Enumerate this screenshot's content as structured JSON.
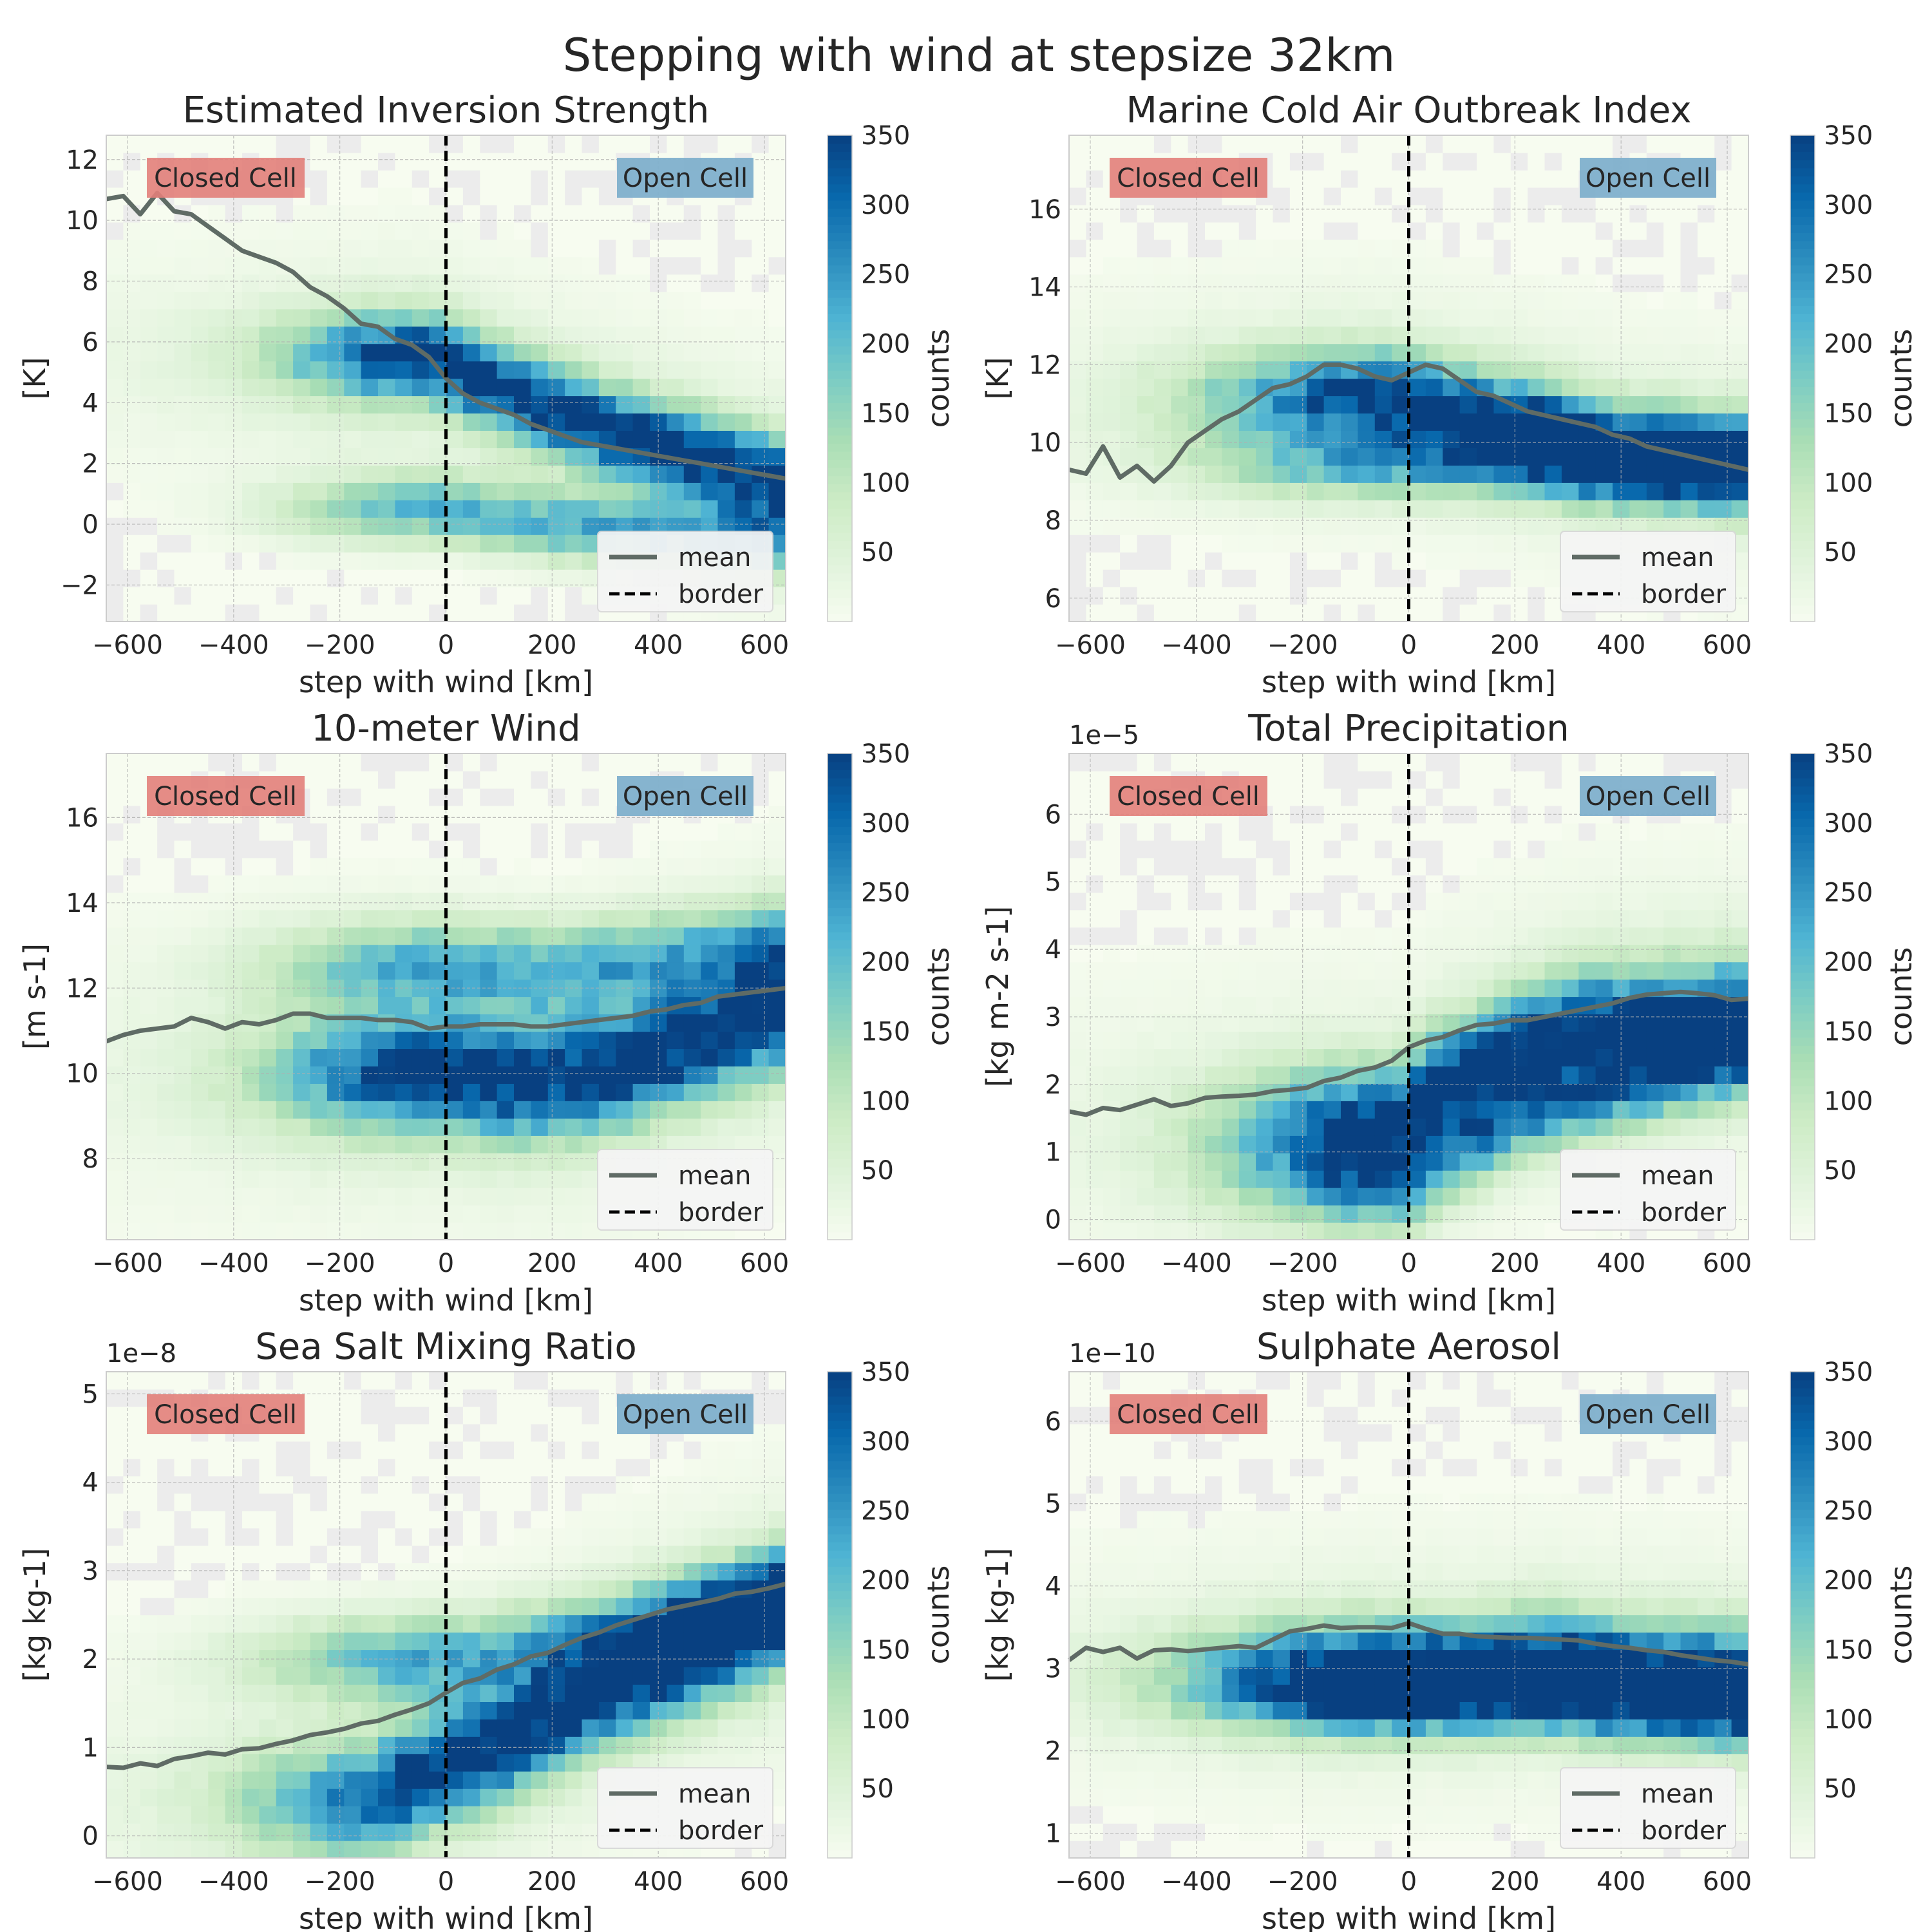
{
  "suptitle": "Stepping with wind at stepsize 32km",
  "chart_data": [
    {
      "type": "heatmap",
      "title": "Estimated Inversion Strength",
      "xlabel": "step with wind [km]",
      "ylabel": "[K]",
      "offset_text": "",
      "xlim": [
        -640,
        640
      ],
      "ylim": [
        -3.2,
        12.8
      ],
      "xticks": [
        -600,
        -400,
        -200,
        0,
        200,
        400,
        600
      ],
      "xtick_labels": [
        "−600",
        "−400",
        "−200",
        "0",
        "200",
        "400",
        "600"
      ],
      "yticks": [
        -2,
        0,
        2,
        4,
        6,
        8,
        10,
        12
      ],
      "ytick_labels": [
        "−2",
        "0",
        "2",
        "4",
        "6",
        "8",
        "10",
        "12"
      ],
      "colorbar": {
        "label": "counts",
        "vmin": 0,
        "vmax": 350,
        "ticks": [
          50,
          100,
          150,
          200,
          250,
          300,
          350
        ]
      },
      "annotations": {
        "closed": "Closed Cell",
        "open": "Open Cell"
      },
      "density": {
        "core": [
          [
            -30,
            5.5
          ],
          [
            80,
            4.6
          ],
          [
            200,
            3.8
          ],
          [
            320,
            3.0
          ],
          [
            640,
            1.3
          ]
        ],
        "second": [
          [
            0,
            0.5
          ],
          [
            200,
            0.0
          ],
          [
            640,
            -0.6
          ]
        ],
        "sigma_y": 1.4,
        "sigma_x": 120
      },
      "mean": {
        "x": [
          -640,
          -608,
          -576,
          -544,
          -512,
          -480,
          -448,
          -416,
          -384,
          -352,
          -320,
          -288,
          -256,
          -224,
          -192,
          -160,
          -128,
          -96,
          -64,
          -32,
          0,
          32,
          64,
          96,
          128,
          160,
          192,
          224,
          256,
          288,
          320,
          352,
          384,
          416,
          448,
          480,
          512,
          544,
          576,
          608,
          640
        ],
        "y": [
          10.7,
          10.8,
          10.2,
          10.9,
          10.3,
          10.2,
          9.8,
          9.4,
          9.0,
          8.8,
          8.6,
          8.3,
          7.8,
          7.5,
          7.1,
          6.6,
          6.5,
          6.1,
          5.9,
          5.5,
          4.8,
          4.3,
          4.0,
          3.8,
          3.6,
          3.3,
          3.1,
          2.9,
          2.7,
          2.6,
          2.5,
          2.4,
          2.3,
          2.2,
          2.1,
          2.0,
          1.9,
          1.8,
          1.7,
          1.6,
          1.5
        ]
      },
      "legend": {
        "mean": "mean",
        "border": "border"
      }
    },
    {
      "type": "heatmap",
      "title": "Marine Cold Air Outbreak Index",
      "xlabel": "step with wind [km]",
      "ylabel": "[K]",
      "offset_text": "",
      "xlim": [
        -640,
        640
      ],
      "ylim": [
        5.4,
        17.9
      ],
      "xticks": [
        -600,
        -400,
        -200,
        0,
        200,
        400,
        600
      ],
      "xtick_labels": [
        "−600",
        "−400",
        "−200",
        "0",
        "200",
        "400",
        "600"
      ],
      "yticks": [
        6,
        8,
        10,
        12,
        14,
        16
      ],
      "ytick_labels": [
        "6",
        "8",
        "10",
        "12",
        "14",
        "16"
      ],
      "colorbar": {
        "label": "counts",
        "vmin": 0,
        "vmax": 350,
        "ticks": [
          50,
          100,
          150,
          200,
          250,
          300,
          350
        ]
      },
      "annotations": {
        "closed": "Closed Cell",
        "open": "Open Cell"
      },
      "density": {
        "core": [
          [
            -30,
            11.2
          ],
          [
            100,
            10.8
          ],
          [
            250,
            10.4
          ],
          [
            400,
            9.8
          ],
          [
            640,
            9.5
          ]
        ],
        "second": [
          [
            100,
            9.5
          ],
          [
            300,
            9.3
          ],
          [
            640,
            9.3
          ]
        ],
        "sigma_y": 1.1,
        "sigma_x": 150
      },
      "mean": {
        "x": [
          -640,
          -608,
          -576,
          -544,
          -512,
          -480,
          -448,
          -416,
          -384,
          -352,
          -320,
          -288,
          -256,
          -224,
          -192,
          -160,
          -128,
          -96,
          -64,
          -32,
          0,
          32,
          64,
          96,
          128,
          160,
          192,
          224,
          256,
          288,
          320,
          352,
          384,
          416,
          448,
          480,
          512,
          544,
          576,
          608,
          640
        ],
        "y": [
          9.3,
          9.2,
          9.9,
          9.1,
          9.4,
          9.0,
          9.4,
          10.0,
          10.3,
          10.6,
          10.8,
          11.1,
          11.4,
          11.5,
          11.7,
          12.0,
          12.0,
          11.9,
          11.7,
          11.6,
          11.8,
          12.0,
          11.9,
          11.6,
          11.3,
          11.2,
          11.0,
          10.8,
          10.7,
          10.6,
          10.5,
          10.4,
          10.2,
          10.1,
          9.9,
          9.8,
          9.7,
          9.6,
          9.5,
          9.4,
          9.3
        ]
      },
      "legend": {
        "mean": "mean",
        "border": "border"
      }
    },
    {
      "type": "heatmap",
      "title": "10-meter Wind",
      "xlabel": "step with wind [km]",
      "ylabel": "[m s-1]",
      "offset_text": "",
      "xlim": [
        -640,
        640
      ],
      "ylim": [
        6.1,
        17.5
      ],
      "xticks": [
        -600,
        -400,
        -200,
        0,
        200,
        400,
        600
      ],
      "xtick_labels": [
        "−600",
        "−400",
        "−200",
        "0",
        "200",
        "400",
        "600"
      ],
      "yticks": [
        8,
        10,
        12,
        14,
        16
      ],
      "ytick_labels": [
        "8",
        "10",
        "12",
        "14",
        "16"
      ],
      "colorbar": {
        "label": "counts",
        "vmin": 0,
        "vmax": 350,
        "ticks": [
          50,
          100,
          150,
          200,
          250,
          300,
          350
        ]
      },
      "annotations": {
        "closed": "Closed Cell",
        "open": "Open Cell"
      },
      "density": {
        "core": [
          [
            -20,
            10.0
          ],
          [
            150,
            9.8
          ],
          [
            300,
            10.0
          ],
          [
            640,
            11.5
          ]
        ],
        "second": [
          [
            0,
            12.5
          ],
          [
            200,
            12.4
          ],
          [
            640,
            13.0
          ]
        ],
        "sigma_y": 1.3,
        "sigma_x": 130
      },
      "mean": {
        "x": [
          -640,
          -608,
          -576,
          -544,
          -512,
          -480,
          -448,
          -416,
          -384,
          -352,
          -320,
          -288,
          -256,
          -224,
          -192,
          -160,
          -128,
          -96,
          -64,
          -32,
          0,
          32,
          64,
          96,
          128,
          160,
          192,
          224,
          256,
          288,
          320,
          352,
          384,
          416,
          448,
          480,
          512,
          544,
          576,
          608,
          640
        ],
        "y": [
          10.75,
          10.9,
          11.0,
          11.05,
          11.1,
          11.3,
          11.2,
          11.05,
          11.2,
          11.15,
          11.25,
          11.4,
          11.4,
          11.3,
          11.3,
          11.3,
          11.25,
          11.25,
          11.2,
          11.05,
          11.1,
          11.1,
          11.15,
          11.15,
          11.15,
          11.1,
          11.1,
          11.15,
          11.2,
          11.25,
          11.3,
          11.35,
          11.45,
          11.5,
          11.6,
          11.65,
          11.8,
          11.85,
          11.9,
          11.95,
          12.0
        ]
      },
      "legend": {
        "mean": "mean",
        "border": "border"
      }
    },
    {
      "type": "heatmap",
      "title": "Total Precipitation",
      "xlabel": "step with wind [km]",
      "ylabel": "[kg m-2 s-1]",
      "offset_text": "1e−5",
      "xlim": [
        -640,
        640
      ],
      "ylim": [
        -0.3,
        6.9
      ],
      "xticks": [
        -600,
        -400,
        -200,
        0,
        200,
        400,
        600
      ],
      "xtick_labels": [
        "−600",
        "−400",
        "−200",
        "0",
        "200",
        "400",
        "600"
      ],
      "yticks": [
        0,
        1,
        2,
        3,
        4,
        5,
        6
      ],
      "ytick_labels": [
        "0",
        "1",
        "2",
        "3",
        "4",
        "5",
        "6"
      ],
      "colorbar": {
        "label": "counts",
        "vmin": 0,
        "vmax": 350,
        "ticks": [
          50,
          100,
          150,
          200,
          250,
          300,
          350
        ]
      },
      "annotations": {
        "closed": "Closed Cell",
        "open": "Open Cell"
      },
      "density": {
        "core": [
          [
            -30,
            1.4
          ],
          [
            50,
            1.9
          ],
          [
            150,
            2.3
          ],
          [
            300,
            2.8
          ],
          [
            640,
            3.0
          ]
        ],
        "second": [
          [
            0,
            0.5
          ],
          [
            200,
            1.5
          ],
          [
            640,
            2.5
          ]
        ],
        "sigma_y": 0.8,
        "sigma_x": 130
      },
      "mean": {
        "x": [
          -640,
          -608,
          -576,
          -544,
          -512,
          -480,
          -448,
          -416,
          -384,
          -352,
          -320,
          -288,
          -256,
          -224,
          -192,
          -160,
          -128,
          -96,
          -64,
          -32,
          0,
          32,
          64,
          96,
          128,
          160,
          192,
          224,
          256,
          288,
          320,
          352,
          384,
          416,
          448,
          480,
          512,
          544,
          576,
          608,
          640
        ],
        "y": [
          1.6,
          1.55,
          1.65,
          1.62,
          1.7,
          1.78,
          1.68,
          1.72,
          1.8,
          1.82,
          1.83,
          1.85,
          1.9,
          1.92,
          1.95,
          2.05,
          2.1,
          2.2,
          2.25,
          2.35,
          2.55,
          2.65,
          2.7,
          2.8,
          2.88,
          2.9,
          2.95,
          2.95,
          3.0,
          3.05,
          3.1,
          3.15,
          3.2,
          3.28,
          3.33,
          3.35,
          3.37,
          3.35,
          3.32,
          3.25,
          3.27
        ]
      },
      "legend": {
        "mean": "mean",
        "border": "border"
      }
    },
    {
      "type": "heatmap",
      "title": "Sea Salt Mixing Ratio",
      "xlabel": "step with wind [km]",
      "ylabel": "[kg kg-1]",
      "offset_text": "1e−8",
      "xlim": [
        -640,
        640
      ],
      "ylim": [
        -0.25,
        5.25
      ],
      "xticks": [
        -600,
        -400,
        -200,
        0,
        200,
        400,
        600
      ],
      "xtick_labels": [
        "−600",
        "−400",
        "−200",
        "0",
        "200",
        "400",
        "600"
      ],
      "yticks": [
        0,
        1,
        2,
        3,
        4,
        5
      ],
      "ytick_labels": [
        "0",
        "1",
        "2",
        "3",
        "4",
        "5"
      ],
      "colorbar": {
        "label": "counts",
        "vmin": 0,
        "vmax": 350,
        "ticks": [
          50,
          100,
          150,
          200,
          250,
          300,
          350
        ]
      },
      "annotations": {
        "closed": "Closed Cell",
        "open": "Open Cell"
      },
      "density": {
        "core": [
          [
            -150,
            0.4
          ],
          [
            0,
            0.8
          ],
          [
            100,
            1.0
          ],
          [
            250,
            1.5
          ],
          [
            640,
            2.5
          ]
        ],
        "second": [
          [
            50,
            2.0
          ],
          [
            250,
            2.2
          ],
          [
            640,
            2.8
          ]
        ],
        "sigma_y": 0.6,
        "sigma_x": 140
      },
      "mean": {
        "x": [
          -640,
          -608,
          -576,
          -544,
          -512,
          -480,
          -448,
          -416,
          -384,
          -352,
          -320,
          -288,
          -256,
          -224,
          -192,
          -160,
          -128,
          -96,
          -64,
          -32,
          0,
          32,
          64,
          96,
          128,
          160,
          192,
          224,
          256,
          288,
          320,
          352,
          384,
          416,
          448,
          480,
          512,
          544,
          576,
          608,
          640
        ],
        "y": [
          0.78,
          0.77,
          0.82,
          0.79,
          0.87,
          0.9,
          0.94,
          0.92,
          0.98,
          0.99,
          1.04,
          1.08,
          1.14,
          1.17,
          1.21,
          1.27,
          1.3,
          1.37,
          1.43,
          1.5,
          1.62,
          1.73,
          1.78,
          1.88,
          1.94,
          2.03,
          2.07,
          2.16,
          2.24,
          2.3,
          2.38,
          2.44,
          2.5,
          2.56,
          2.6,
          2.64,
          2.68,
          2.74,
          2.76,
          2.8,
          2.85
        ]
      },
      "legend": {
        "mean": "mean",
        "border": "border"
      }
    },
    {
      "type": "heatmap",
      "title": "Sulphate Aerosol",
      "xlabel": "step with wind [km]",
      "ylabel": "[kg kg-1]",
      "offset_text": "1e−10",
      "xlim": [
        -640,
        640
      ],
      "ylim": [
        0.7,
        6.6
      ],
      "xticks": [
        -600,
        -400,
        -200,
        0,
        200,
        400,
        600
      ],
      "xtick_labels": [
        "−600",
        "−400",
        "−200",
        "0",
        "200",
        "400",
        "600"
      ],
      "yticks": [
        1,
        2,
        3,
        4,
        5,
        6
      ],
      "ytick_labels": [
        "1",
        "2",
        "3",
        "4",
        "5",
        "6"
      ],
      "colorbar": {
        "label": "counts",
        "vmin": 0,
        "vmax": 350,
        "ticks": [
          50,
          100,
          150,
          200,
          250,
          300,
          350
        ]
      },
      "annotations": {
        "closed": "Closed Cell",
        "open": "Open Cell"
      },
      "density": {
        "core": [
          [
            -30,
            3.0
          ],
          [
            100,
            3.0
          ],
          [
            250,
            3.1
          ],
          [
            400,
            3.0
          ],
          [
            640,
            2.9
          ]
        ],
        "second": [
          [
            0,
            2.6
          ],
          [
            200,
            2.6
          ],
          [
            640,
            2.4
          ]
        ],
        "sigma_y": 0.55,
        "sigma_x": 160
      },
      "mean": {
        "x": [
          -640,
          -608,
          -576,
          -544,
          -512,
          -480,
          -448,
          -416,
          -384,
          -352,
          -320,
          -288,
          -256,
          -224,
          -192,
          -160,
          -128,
          -96,
          -64,
          -32,
          0,
          32,
          64,
          96,
          128,
          160,
          192,
          224,
          256,
          288,
          320,
          352,
          384,
          416,
          448,
          480,
          512,
          544,
          576,
          608,
          640
        ],
        "y": [
          3.1,
          3.25,
          3.2,
          3.25,
          3.12,
          3.22,
          3.23,
          3.21,
          3.23,
          3.25,
          3.27,
          3.25,
          3.35,
          3.45,
          3.48,
          3.52,
          3.49,
          3.5,
          3.5,
          3.49,
          3.55,
          3.48,
          3.42,
          3.42,
          3.39,
          3.38,
          3.37,
          3.37,
          3.36,
          3.35,
          3.34,
          3.3,
          3.27,
          3.25,
          3.22,
          3.2,
          3.16,
          3.13,
          3.1,
          3.08,
          3.05
        ]
      },
      "legend": {
        "mean": "mean",
        "border": "border"
      }
    }
  ]
}
